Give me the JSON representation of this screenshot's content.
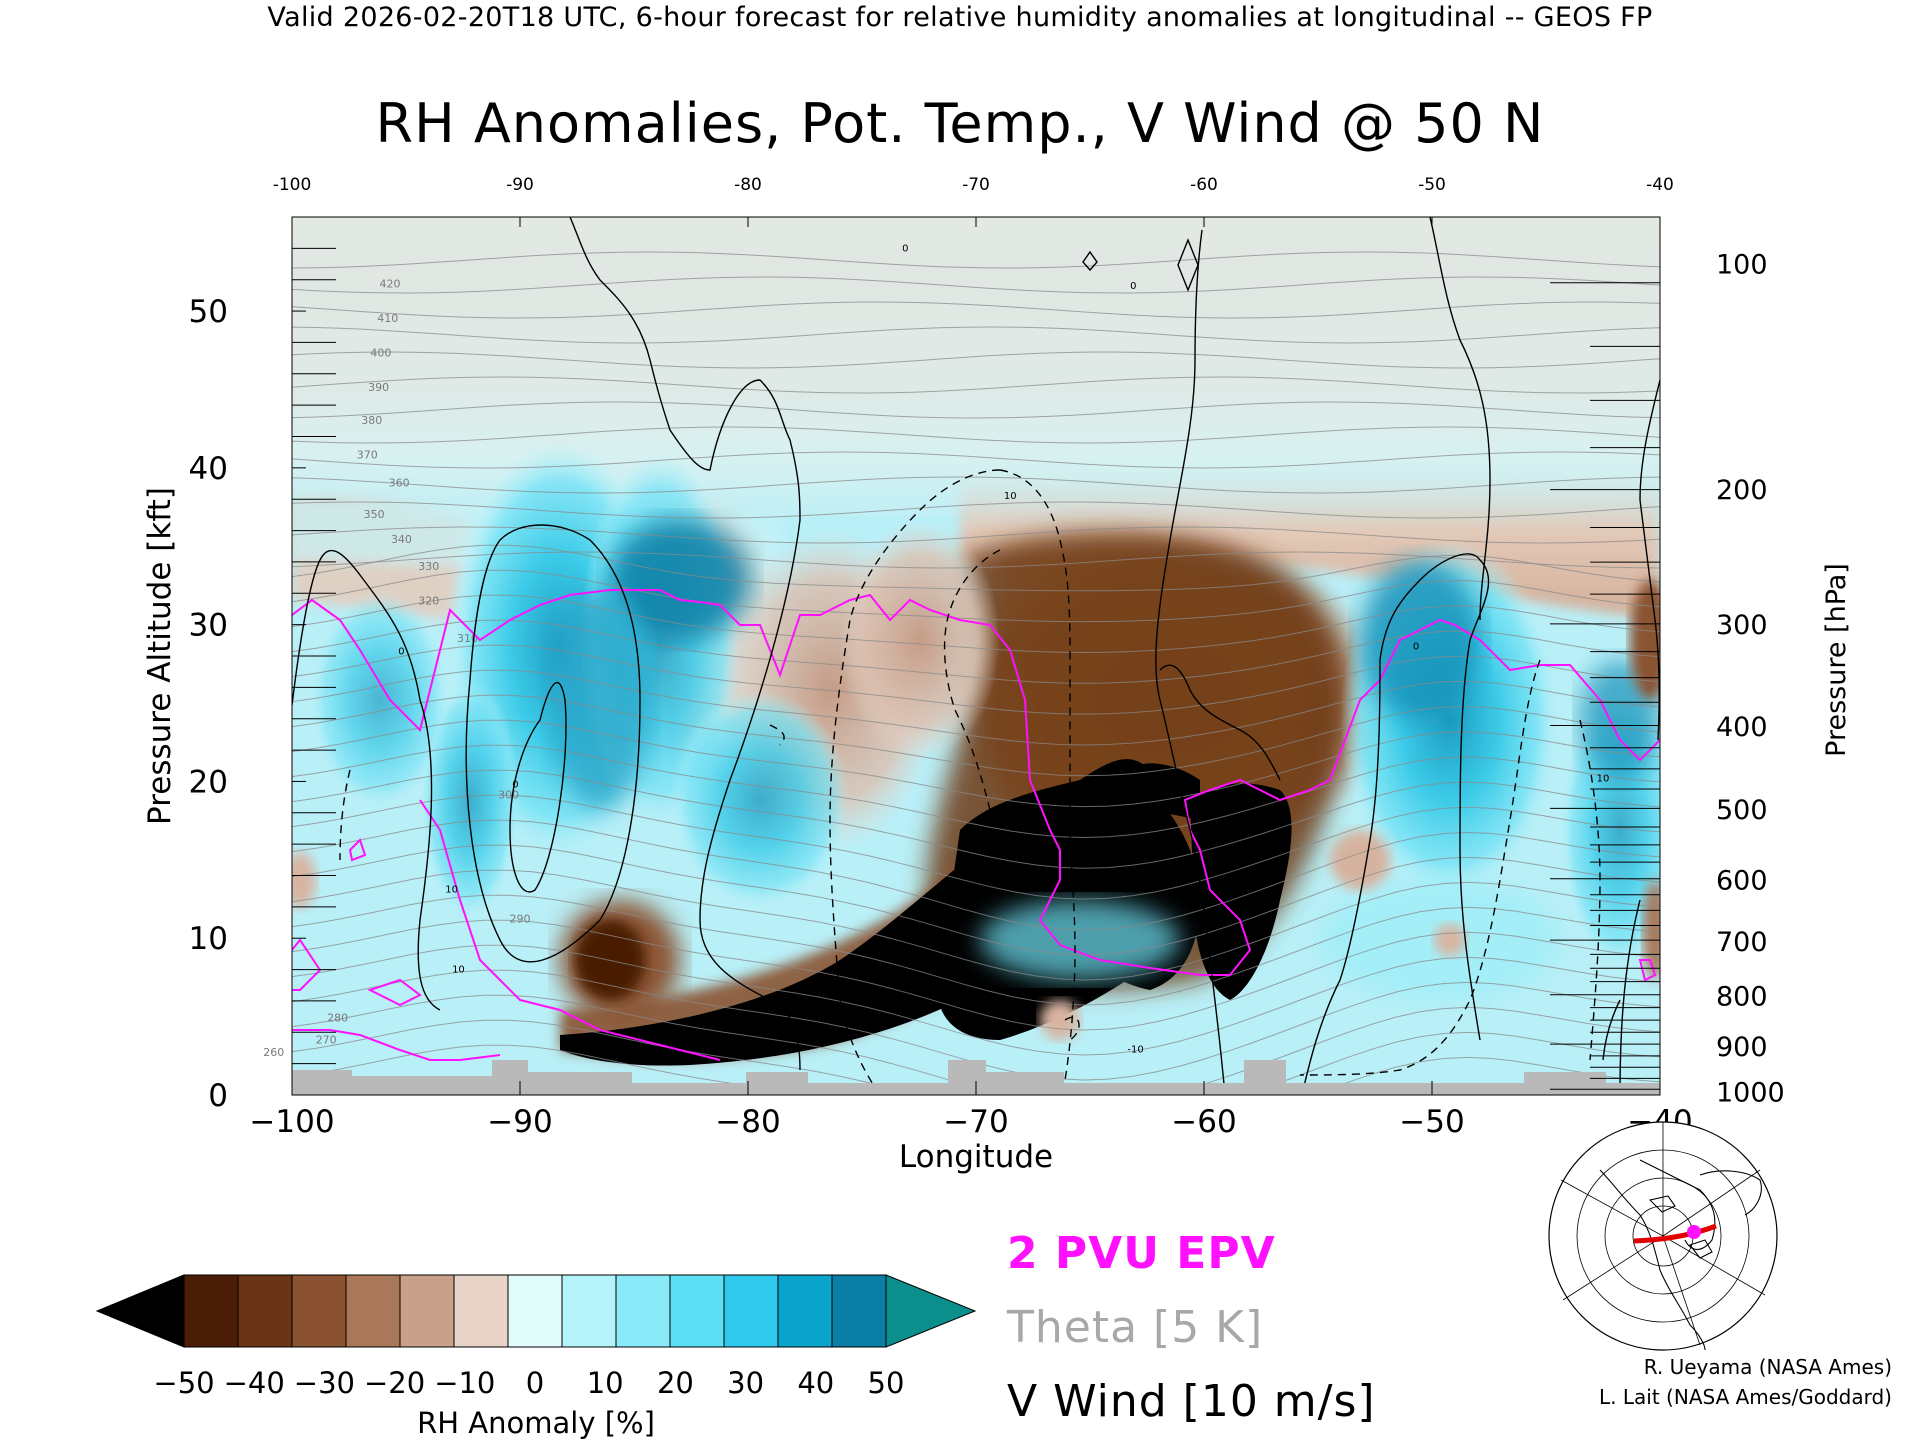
{
  "header": {
    "valid_line": "Valid 2026-02-20T18 UTC, 6-hour forecast for relative humidity anomalies at longitudinal -- GEOS FP",
    "title": "RH Anomalies, Pot. Temp., V Wind @ 50 N"
  },
  "chart_data": {
    "type": "heatmap",
    "title": "RH Anomalies, Pot. Temp., V Wind @ 50 N",
    "xlabel": "Longitude",
    "ylabel": "Pressure Altitude [kft]",
    "y2label": "Pressure [hPa]",
    "xlim": [
      -100,
      -40
    ],
    "ylim": [
      0,
      56
    ],
    "x_ticks": [
      -100,
      -90,
      -80,
      -70,
      -60,
      -50,
      -40
    ],
    "x_tick_labels": [
      "−100",
      "−90",
      "−80",
      "−70",
      "−60",
      "−50",
      "−40"
    ],
    "top_ticks": [
      "-100",
      "-90",
      "-80",
      "-70",
      "-60",
      "-50",
      "-40"
    ],
    "y_ticks": [
      0,
      10,
      20,
      30,
      40,
      50
    ],
    "pressure_ticks": [
      {
        "hpa": "100",
        "kft": 53.1
      },
      {
        "hpa": "200",
        "kft": 38.7
      },
      {
        "hpa": "300",
        "kft": 30.1
      },
      {
        "hpa": "400",
        "kft": 23.6
      },
      {
        "hpa": "500",
        "kft": 18.3
      },
      {
        "hpa": "600",
        "kft": 13.8
      },
      {
        "hpa": "700",
        "kft": 9.9
      },
      {
        "hpa": "800",
        "kft": 6.4
      },
      {
        "hpa": "900",
        "kft": 3.2
      },
      {
        "hpa": "1000",
        "kft": 0.3
      }
    ],
    "theta_labels": [
      {
        "text": "420",
        "x": -95.7,
        "y": 51.5
      },
      {
        "text": "410",
        "x": -95.8,
        "y": 49.3
      },
      {
        "text": "400",
        "x": -96.1,
        "y": 47.1
      },
      {
        "text": "390",
        "x": -96.2,
        "y": 44.9
      },
      {
        "text": "380",
        "x": -96.5,
        "y": 42.8
      },
      {
        "text": "370",
        "x": -96.7,
        "y": 40.6
      },
      {
        "text": "360",
        "x": -95.3,
        "y": 38.8
      },
      {
        "text": "350",
        "x": -96.4,
        "y": 36.8
      },
      {
        "text": "340",
        "x": -95.2,
        "y": 35.2
      },
      {
        "text": "330",
        "x": -94.0,
        "y": 33.5
      },
      {
        "text": "320",
        "x": -94.0,
        "y": 31.3
      },
      {
        "text": "310",
        "x": -92.3,
        "y": 28.9
      },
      {
        "text": "300",
        "x": -90.5,
        "y": 18.9
      },
      {
        "text": "290",
        "x": -90.0,
        "y": 11.0
      },
      {
        "text": "280",
        "x": -98.0,
        "y": 4.7
      },
      {
        "text": "270",
        "x": -98.5,
        "y": 3.3
      },
      {
        "text": "260",
        "x": -100.8,
        "y": 2.5
      }
    ],
    "vwind_labels": [
      {
        "text": "0",
        "x": -95.2,
        "y": 28.1
      },
      {
        "text": "0",
        "x": -90.2,
        "y": 19.6
      },
      {
        "text": "0",
        "x": -73.1,
        "y": 53.8
      },
      {
        "text": "0",
        "x": -63.1,
        "y": 51.4
      },
      {
        "text": "0",
        "x": -50.7,
        "y": 28.4
      },
      {
        "text": "10",
        "x": -68.5,
        "y": 38.0
      },
      {
        "text": "10",
        "x": -93.0,
        "y": 12.9
      },
      {
        "text": "10",
        "x": -92.7,
        "y": 7.8
      },
      {
        "text": "-10",
        "x": -63.0,
        "y": 2.7
      },
      {
        "text": "10",
        "x": -42.5,
        "y": 20.0
      }
    ],
    "colorbar": {
      "label": "RH Anomaly [%]",
      "ticks": [
        "−50",
        "−40",
        "−30",
        "−20",
        "−10",
        "0",
        "10",
        "20",
        "30",
        "40",
        "50"
      ],
      "colors": [
        "#000000",
        "#4a1e06",
        "#6b3417",
        "#8a5230",
        "#a9775a",
        "#c9a08a",
        "#e8d4c8",
        "#e2fbfb",
        "#b5f3fa",
        "#89eaf8",
        "#5de0f6",
        "#2ec9ec",
        "#0aa3cc",
        "#0a7fa6",
        "#0a8f8c"
      ]
    },
    "legend": [
      {
        "text": "2 PVU EPV",
        "color": "#ff10ff"
      },
      {
        "text": "Theta [5 K]",
        "color": "#a8a8a8"
      },
      {
        "text": "V Wind [10 m/s]",
        "color": "#000000"
      }
    ]
  },
  "credits": {
    "line1": "R. Ueyama (NASA Ames)",
    "line2": "L. Lait (NASA Ames/Goddard)"
  }
}
